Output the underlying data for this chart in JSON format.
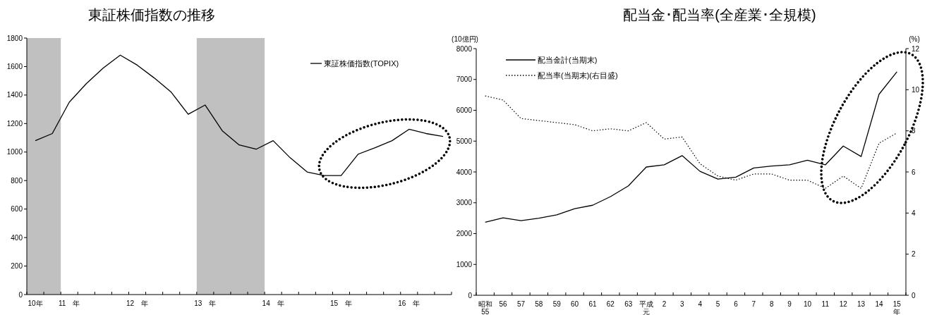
{
  "chart_data": [
    {
      "type": "line",
      "title": "東証株価指数の推移",
      "categories": [
        "10年",
        null,
        "11　年",
        null,
        null,
        null,
        "12　年",
        null,
        null,
        null,
        "13　年",
        null,
        null,
        null,
        "14　年",
        null,
        null,
        null,
        "15　年",
        null,
        null,
        null,
        "16　年",
        null,
        null
      ],
      "series": [
        {
          "name": "東証株価指数(TOPIX)",
          "color": "#000000",
          "values": [
            1080,
            1130,
            1350,
            1480,
            1590,
            1680,
            1610,
            1520,
            1420,
            1265,
            1330,
            1150,
            1050,
            1020,
            1080,
            960,
            860,
            835,
            835,
            985,
            1030,
            1080,
            1160,
            1130,
            1110
          ]
        }
      ],
      "ylim": [
        0,
        1800
      ],
      "yticks": [
        0,
        200,
        400,
        600,
        800,
        1000,
        1200,
        1400,
        1600,
        1800
      ],
      "legend": "top right",
      "line_style": "solid"
    },
    {
      "type": "line",
      "title": "配当金･配当率(全産業･全規模)",
      "ylabel": "(10億円)",
      "y2label": "(%)",
      "categories": [
        "昭和55",
        "56",
        "57",
        "58",
        "59",
        "60",
        "61",
        "62",
        "63",
        "平成元",
        "2",
        "3",
        "4",
        "5",
        "6",
        "7",
        "8",
        "9",
        "10",
        "11",
        "12",
        "13",
        "14",
        "15年"
      ],
      "series": [
        {
          "name": "配当金計(当期末)",
          "color": "#000000",
          "line_style": "solid",
          "values": [
            2370,
            2510,
            2420,
            2500,
            2610,
            2810,
            2920,
            3200,
            3550,
            4160,
            4230,
            4530,
            4020,
            3770,
            3830,
            4130,
            4190,
            4230,
            4380,
            4230,
            4840,
            4500,
            6520,
            7250
          ]
        },
        {
          "name": "配当率(当期末)(右目盛)",
          "color": "#000000",
          "line_style": "dotted",
          "axis": "y2",
          "values": [
            9.7,
            9.5,
            8.6,
            8.5,
            8.4,
            8.3,
            8.0,
            8.1,
            8.0,
            8.4,
            7.6,
            7.7,
            6.4,
            5.8,
            5.6,
            5.9,
            5.9,
            5.6,
            5.6,
            5.2,
            5.8,
            5.2,
            7.4,
            7.9
          ]
        }
      ],
      "ylim": [
        0,
        8000
      ],
      "yticks": [
        0,
        1000,
        2000,
        3000,
        4000,
        5000,
        6000,
        7000,
        8000
      ],
      "y2lim": [
        0,
        12
      ],
      "y2ticks": [
        0,
        2,
        4,
        6,
        8,
        10,
        12
      ],
      "legend": "top left"
    }
  ]
}
